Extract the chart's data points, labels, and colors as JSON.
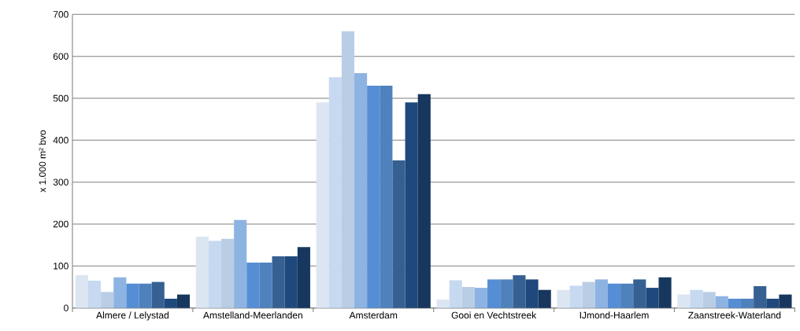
{
  "chart_data": {
    "type": "bar",
    "ylabel": "x 1.000 m² bvo",
    "categories": [
      "Almere / Lelystad",
      "Amstelland-Meerlanden",
      "Amsterdam",
      "Gooi en Vechtstreek",
      "IJmond-Haarlem",
      "Zaanstreek-Waterland"
    ],
    "series": [
      {
        "color": "#dce6f2",
        "values": [
          78,
          170,
          490,
          20,
          43,
          32
        ]
      },
      {
        "color": "#c6d9f0",
        "values": [
          65,
          160,
          550,
          66,
          53,
          43
        ]
      },
      {
        "color": "#b9cde5",
        "values": [
          38,
          165,
          660,
          50,
          62,
          38
        ]
      },
      {
        "color": "#8db3e2",
        "values": [
          73,
          210,
          560,
          48,
          68,
          28
        ]
      },
      {
        "color": "#558ed5",
        "values": [
          58,
          108,
          530,
          68,
          58,
          22
        ]
      },
      {
        "color": "#4f81bd",
        "values": [
          58,
          108,
          530,
          68,
          58,
          22
        ]
      },
      {
        "color": "#376092",
        "values": [
          62,
          123,
          352,
          78,
          68,
          52
        ]
      },
      {
        "color": "#1f497d",
        "values": [
          22,
          123,
          490,
          68,
          48,
          22
        ]
      },
      {
        "color": "#17375e",
        "values": [
          32,
          145,
          510,
          43,
          73,
          32
        ]
      }
    ],
    "ylim": [
      0,
      700
    ],
    "yticks": [
      0,
      100,
      200,
      300,
      400,
      500,
      600,
      700
    ],
    "grid": "y"
  }
}
